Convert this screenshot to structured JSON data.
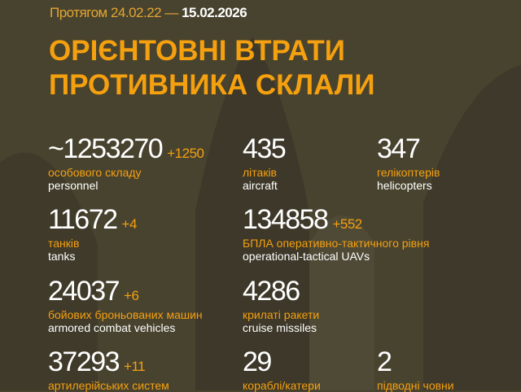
{
  "header": {
    "date_prefix": "Протягом 24.02.22 —",
    "date_end": "15.02.2026",
    "title_line1": "ОРІЄНТОВНІ ВТРАТИ",
    "title_line2": "ПРОТИВНИКА СКЛАЛИ"
  },
  "colors": {
    "background": "#48432f",
    "accent": "#f5a00f",
    "text": "#ffffff"
  },
  "stats": [
    {
      "value": "~1253270",
      "delta": "+1250",
      "ua": "особового складу",
      "en": "personnel"
    },
    {
      "value": "435",
      "delta": "",
      "ua": "літаків",
      "en": "aircraft"
    },
    {
      "value": "347",
      "delta": "",
      "ua": "гелікоптерів",
      "en": "helicopters"
    },
    {
      "value": "11672",
      "delta": "+4",
      "ua": "танків",
      "en": "tanks"
    },
    {
      "value": "134858",
      "delta": "+552",
      "ua": "БПЛА оперативно-тактичного рівня",
      "en": "operational-tactical UAVs"
    },
    {
      "value": "24037",
      "delta": "+6",
      "ua": "бойових броньованих машин",
      "en": "armored combat vehicles"
    },
    {
      "value": "4286",
      "delta": "",
      "ua": "крилаті ракети",
      "en": "cruise missiles"
    },
    {
      "value": "37293",
      "delta": "+11",
      "ua": "артилерійських систем",
      "en": ""
    },
    {
      "value": "29",
      "delta": "",
      "ua": "кораблі/катери",
      "en": ""
    },
    {
      "value": "2",
      "delta": "",
      "ua": "підводні човни",
      "en": ""
    }
  ]
}
